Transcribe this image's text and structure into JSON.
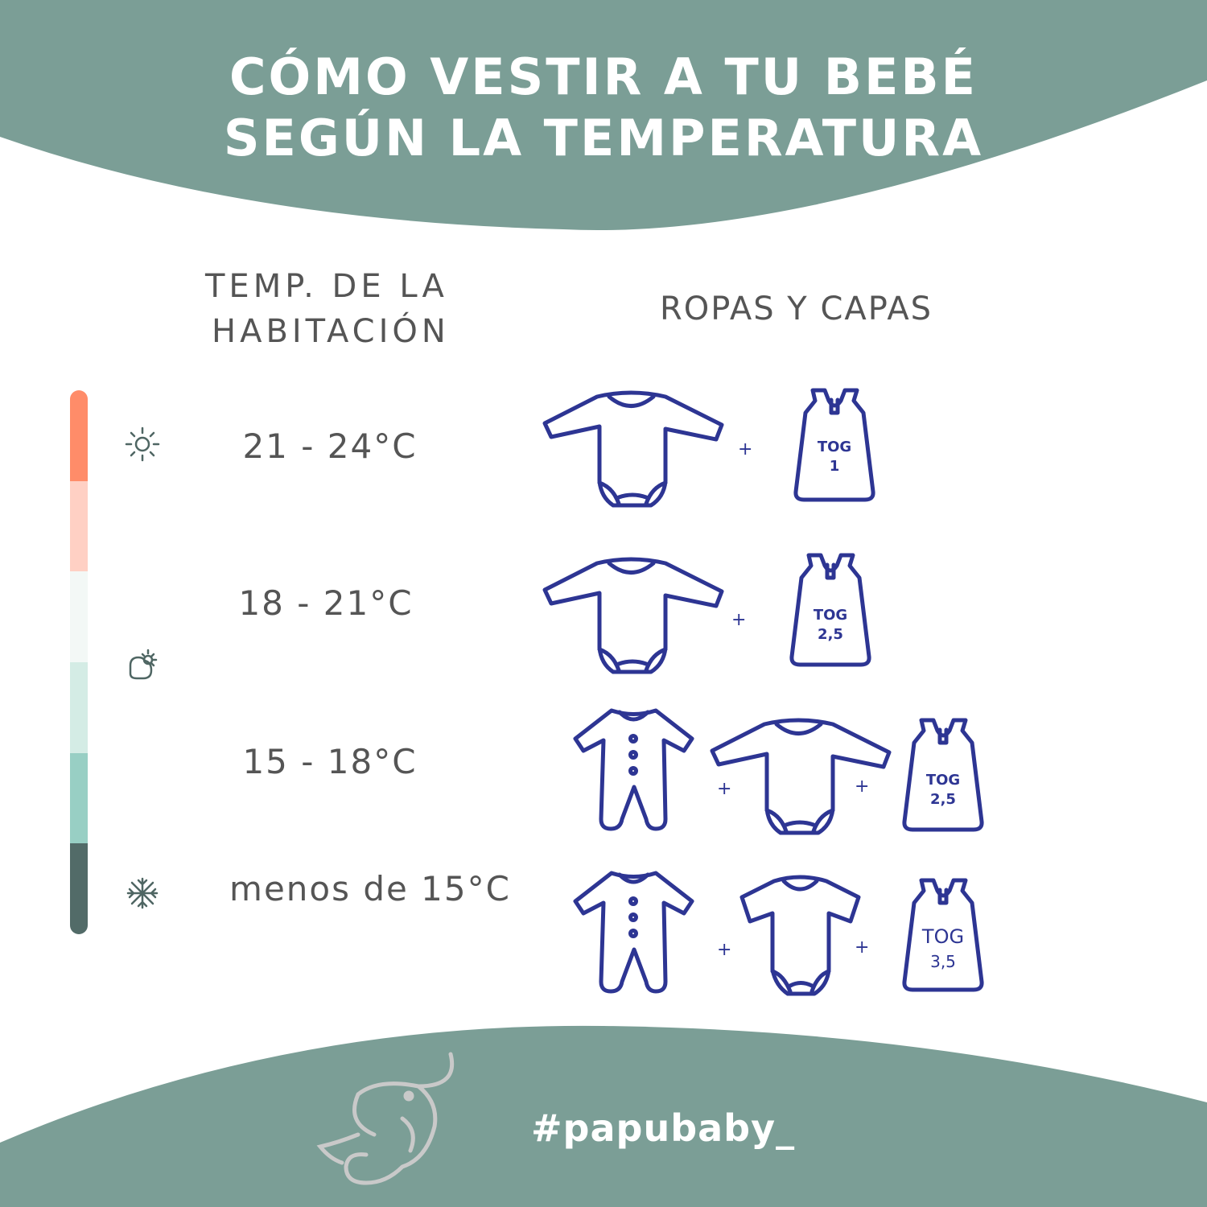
{
  "colors": {
    "band": "#7b9e96",
    "line": "#2d3593",
    "text": "#555555",
    "scale": [
      "#ff8c69",
      "#ffd0c4",
      "#f3f8f6",
      "#d4ece5",
      "#98cfc4",
      "#526b68"
    ]
  },
  "header": {
    "title_line1": "CÓMO VESTIR A TU BEBÉ",
    "title_line2": "SEGÚN LA TEMPERATURA"
  },
  "columns": {
    "temp_line1": "TEMP. DE LA",
    "temp_line2": "HABITACIÓN",
    "clothes": "ROPAS Y CAPAS"
  },
  "weather_icons": [
    "sun-icon",
    "cloud-sun-icon",
    "snowflake-icon"
  ],
  "rows": [
    {
      "temp": "21 - 24°C",
      "items": [
        "long-sleeve-bodysuit",
        "sleeping-bag"
      ],
      "tog": [
        "TOG",
        "1"
      ]
    },
    {
      "temp": "18 - 21°C",
      "items": [
        "long-sleeve-bodysuit",
        "sleeping-bag"
      ],
      "tog": [
        "TOG",
        "2,5"
      ]
    },
    {
      "temp": "15 - 18°C",
      "items": [
        "footie-pajama",
        "long-sleeve-bodysuit",
        "sleeping-bag"
      ],
      "tog": [
        "TOG",
        "2,5"
      ]
    },
    {
      "temp": "menos de 15°C",
      "items": [
        "footie-pajama",
        "short-sleeve-bodysuit",
        "sleeping-bag"
      ],
      "tog": [
        "TOG",
        "3,5"
      ]
    }
  ],
  "plus": "+",
  "footer": {
    "brand": "#papubaby_",
    "logo": "elephant-logo"
  }
}
